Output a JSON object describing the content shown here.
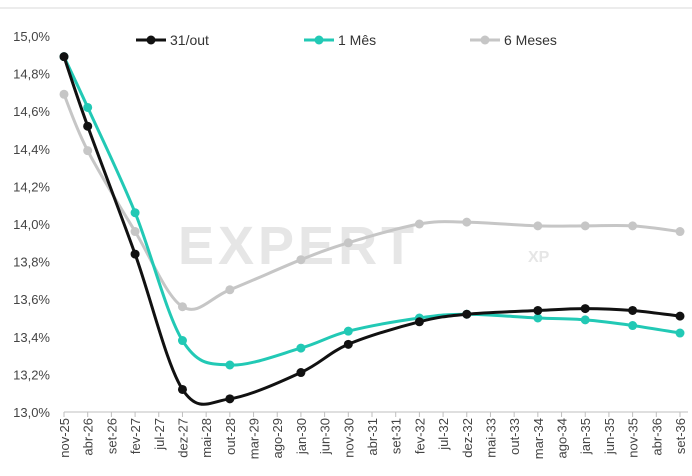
{
  "chart_data": {
    "type": "line",
    "categories": [
      "nov-25",
      "abr-26",
      "set-26",
      "fev-27",
      "jul-27",
      "dez-27",
      "mai-28",
      "out-28",
      "mar-29",
      "ago-29",
      "jan-30",
      "jun-30",
      "nov-30",
      "abr-31",
      "set-31",
      "fev-32",
      "jul-32",
      "dez-32",
      "mai-33",
      "out-33",
      "mar-34",
      "ago-34",
      "jan-35",
      "jun-35",
      "nov-35",
      "abr-36",
      "set-36"
    ],
    "y_ticks": [
      "13,0%",
      "13,2%",
      "13,4%",
      "13,6%",
      "13,8%",
      "14,0%",
      "14,2%",
      "14,4%",
      "14,6%",
      "14,8%",
      "15,0%"
    ],
    "ylim": [
      13.0,
      15.0
    ],
    "legend_position": "top",
    "grid": false,
    "series": [
      {
        "name": "31/out",
        "color": "#111111",
        "points": [
          {
            "x": "nov-25",
            "y": 14.89
          },
          {
            "x": "abr-26",
            "y": 14.52
          },
          {
            "x": "fev-27",
            "y": 13.84
          },
          {
            "x": "dez-27",
            "y": 13.12
          },
          {
            "x": "out-28",
            "y": 13.07
          },
          {
            "x": "jan-30",
            "y": 13.21
          },
          {
            "x": "nov-30",
            "y": 13.36
          },
          {
            "x": "fev-32",
            "y": 13.48
          },
          {
            "x": "dez-32",
            "y": 13.52
          },
          {
            "x": "mar-34",
            "y": 13.54
          },
          {
            "x": "jan-35",
            "y": 13.55
          },
          {
            "x": "nov-35",
            "y": 13.54
          },
          {
            "x": "set-36",
            "y": 13.51
          }
        ]
      },
      {
        "name": "1 Mês",
        "color": "#22c9b5",
        "points": [
          {
            "x": "nov-25",
            "y": 14.89
          },
          {
            "x": "abr-26",
            "y": 14.62
          },
          {
            "x": "fev-27",
            "y": 14.06
          },
          {
            "x": "dez-27",
            "y": 13.38
          },
          {
            "x": "out-28",
            "y": 13.25
          },
          {
            "x": "jan-30",
            "y": 13.34
          },
          {
            "x": "nov-30",
            "y": 13.43
          },
          {
            "x": "fev-32",
            "y": 13.5
          },
          {
            "x": "dez-32",
            "y": 13.52
          },
          {
            "x": "mar-34",
            "y": 13.5
          },
          {
            "x": "jan-35",
            "y": 13.49
          },
          {
            "x": "nov-35",
            "y": 13.46
          },
          {
            "x": "set-36",
            "y": 13.42
          }
        ]
      },
      {
        "name": "6 Meses",
        "color": "#c6c6c6",
        "points": [
          {
            "x": "nov-25",
            "y": 14.69
          },
          {
            "x": "abr-26",
            "y": 14.39
          },
          {
            "x": "fev-27",
            "y": 13.96
          },
          {
            "x": "dez-27",
            "y": 13.56
          },
          {
            "x": "out-28",
            "y": 13.65
          },
          {
            "x": "jan-30",
            "y": 13.81
          },
          {
            "x": "nov-30",
            "y": 13.9
          },
          {
            "x": "fev-32",
            "y": 14.0
          },
          {
            "x": "dez-32",
            "y": 14.01
          },
          {
            "x": "mar-34",
            "y": 13.99
          },
          {
            "x": "jan-35",
            "y": 13.99
          },
          {
            "x": "nov-35",
            "y": 13.99
          },
          {
            "x": "set-36",
            "y": 13.96
          }
        ]
      }
    ]
  },
  "watermark": {
    "main": "EXPERT",
    "sub": "XP"
  }
}
